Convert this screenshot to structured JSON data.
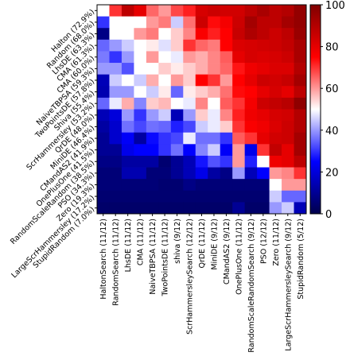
{
  "chart_data": {
    "type": "heatmap",
    "title": "",
    "xlabel": "",
    "ylabel": "",
    "row_labels": [
      "Halton (72.9%)",
      "Random (68.0%)",
      "LhsDE (63.3%)",
      "CMA (61.3%)",
      "CMA (60.0%)",
      "NaiveTBPSA (59.3%)",
      "TwoPointsDE (57.8%)",
      "Shiva (55.4%)",
      "ScrHammersley (53.2%)",
      "QrDE (48.0%)",
      "MiniDE (46.4%)",
      "CMandAS2 (41.9%)",
      "OnePlusOne (41.5%)",
      "RandomScaleRandom (38.5%)",
      "PSO (34.3%)",
      "Zero (19.3%)",
      "LargeScrHammersley (17.2%)",
      "StupidRandom (7.0%)"
    ],
    "col_labels": [
      "HaltonSearch (11/12)",
      "RandomSearch (11/12)",
      "LhsDE (11/12)",
      "CMA (11/12)",
      "NaiveTBPSA (11/12)",
      "TwoPointsDE (11/12)",
      "shiva (9/12)",
      "ScrHammersleySearch (12/12)",
      "QrDE (11/12)",
      "MiniDE (9/12)",
      "CMandAS2 (9/12)",
      "OnePlusOne (11/12)",
      "RandomScaleRandomSearch (9/12)",
      "PSO (12/12)",
      "Zero (11/12)",
      "LargeScrHammersleySearch (9/12)",
      "StupidRandom (5/12)"
    ],
    "values": [
      [
        50,
        70,
        88,
        80,
        65,
        60,
        68,
        72,
        83,
        85,
        84,
        84,
        88,
        92,
        88,
        90,
        96
      ],
      [
        30,
        50,
        50,
        50,
        60,
        63,
        45,
        64,
        85,
        74,
        77,
        85,
        93,
        88,
        88,
        93,
        96
      ],
      [
        8,
        50,
        50,
        60,
        63,
        50,
        55,
        62,
        76,
        72,
        75,
        86,
        91,
        88,
        85,
        88,
        95
      ],
      [
        35,
        40,
        45,
        50,
        52,
        47,
        55,
        70,
        65,
        63,
        75,
        82,
        83,
        84,
        85,
        87,
        92
      ],
      [
        37,
        30,
        40,
        50,
        60,
        50,
        48,
        60,
        58,
        62,
        66,
        80,
        83,
        82,
        83,
        85,
        92
      ],
      [
        40,
        40,
        33,
        50,
        50,
        55,
        52,
        55,
        58,
        62,
        65,
        73,
        78,
        80,
        82,
        82,
        90
      ],
      [
        15,
        45,
        50,
        45,
        58,
        50,
        60,
        55,
        75,
        70,
        60,
        75,
        80,
        85,
        84,
        86,
        93
      ],
      [
        14,
        40,
        40,
        50,
        45,
        52,
        35,
        52,
        55,
        58,
        64,
        74,
        75,
        80,
        83,
        80,
        88
      ],
      [
        35,
        48,
        58,
        38,
        55,
        57,
        50,
        48,
        62,
        50,
        66,
        70,
        77,
        85,
        87,
        89,
        97
      ],
      [
        15,
        20,
        40,
        30,
        40,
        45,
        15,
        40,
        55,
        48,
        62,
        72,
        78,
        80,
        83,
        84,
        90
      ],
      [
        12,
        18,
        36,
        32,
        36,
        35,
        28,
        32,
        45,
        48,
        55,
        70,
        76,
        78,
        82,
        85,
        90
      ],
      [
        10,
        18,
        24,
        12,
        26,
        30,
        32,
        48,
        36,
        36,
        30,
        66,
        70,
        80,
        84,
        85,
        93
      ],
      [
        10,
        10,
        22,
        25,
        25,
        30,
        36,
        25,
        38,
        45,
        24,
        60,
        22,
        70,
        87,
        80,
        93
      ],
      [
        8,
        8,
        12,
        12,
        12,
        5,
        10,
        15,
        27,
        33,
        30,
        60,
        28,
        50,
        78,
        80,
        88
      ],
      [
        6,
        6,
        14,
        14,
        6,
        6,
        10,
        15,
        22,
        12,
        8,
        40,
        15,
        25,
        60,
        62,
        70
      ],
      [
        6,
        6,
        6,
        6,
        6,
        5,
        5,
        8,
        6,
        6,
        6,
        6,
        6,
        6,
        50,
        60,
        60
      ],
      [
        5,
        5,
        5,
        5,
        5,
        5,
        5,
        5,
        5,
        5,
        5,
        5,
        5,
        5,
        45,
        35,
        35
      ],
      [
        4,
        4,
        4,
        4,
        4,
        4,
        4,
        4,
        4,
        4,
        4,
        10,
        4,
        4,
        40,
        45,
        15
      ]
    ],
    "colorbar": {
      "min": 0,
      "max": 100,
      "ticks": [
        0,
        20,
        40,
        60,
        80,
        100
      ]
    },
    "colormap": "seismic",
    "grid": false
  }
}
